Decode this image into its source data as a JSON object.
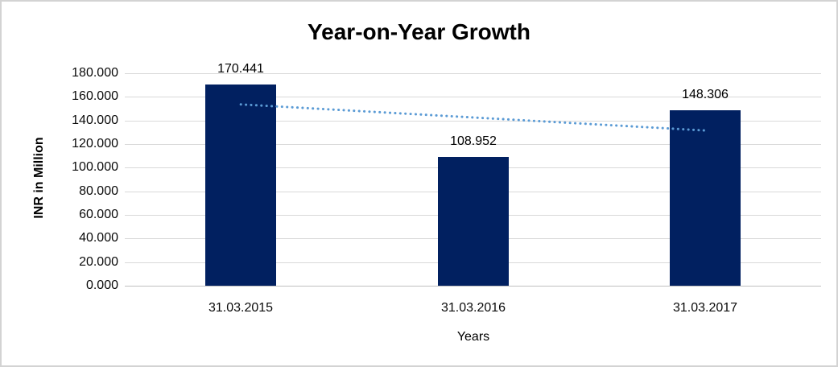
{
  "chart_data": {
    "type": "bar",
    "title": "Year-on-Year Growth",
    "xlabel": "Years",
    "ylabel": "INR in Million",
    "categories": [
      "31.03.2015",
      "31.03.2016",
      "31.03.2017"
    ],
    "values": [
      170.441,
      108.952,
      148.306
    ],
    "value_labels": [
      "170.441",
      "108.952",
      "148.306"
    ],
    "ylim": [
      0,
      180
    ],
    "ytick_step": 20,
    "ytick_labels": [
      "0.000",
      "20.000",
      "40.000",
      "60.000",
      "80.000",
      "100.000",
      "120.000",
      "140.000",
      "160.000",
      "180.000"
    ],
    "grid": true,
    "legend": false,
    "colors": {
      "bar": "#012060",
      "trendline": "#5b9bd5",
      "gridline": "#d9d9d9",
      "text": "#000000"
    },
    "trendline": {
      "type": "linear",
      "style": "dotted",
      "start_value": 153.6,
      "end_value": 131.5
    }
  }
}
